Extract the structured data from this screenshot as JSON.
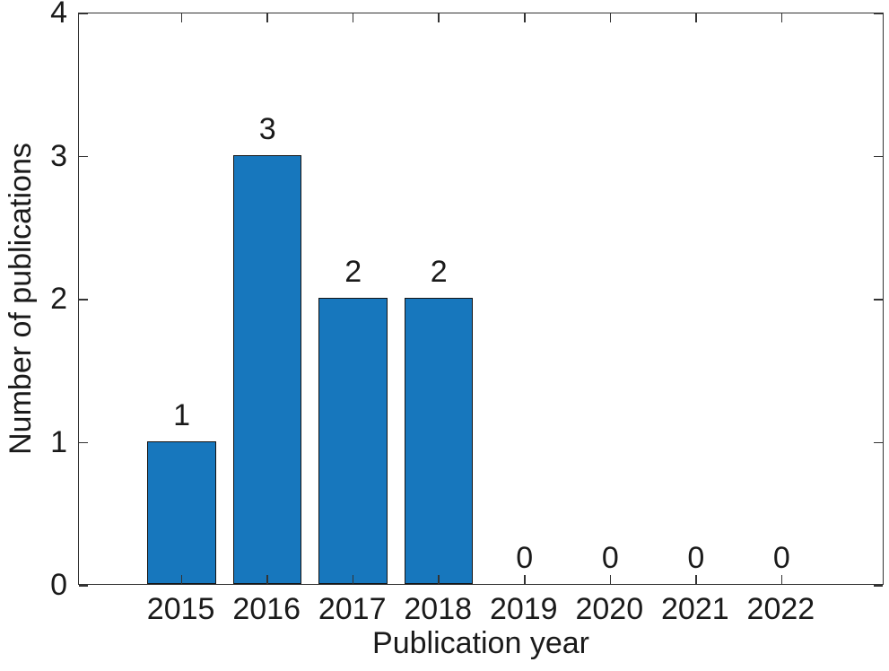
{
  "figure": {
    "background": "#ffffff"
  },
  "chart_data": {
    "type": "bar",
    "title": "",
    "xlabel": "Publication year",
    "ylabel": "Number of publications",
    "categories": [
      "2015",
      "2016",
      "2017",
      "2018",
      "2019",
      "2020",
      "2021",
      "2022"
    ],
    "values": [
      1,
      3,
      2,
      2,
      0,
      0,
      0,
      0
    ],
    "bar_labels": [
      "1",
      "3",
      "2",
      "2",
      "0",
      "0",
      "0",
      "0"
    ],
    "y_tick_labels": [
      "0",
      "1",
      "2",
      "3",
      "4"
    ],
    "y_ticks": [
      0,
      1,
      2,
      3,
      4
    ],
    "ylim": [
      0,
      4
    ],
    "xlim": [
      2013.8,
      2023.2
    ],
    "bar_width": 0.8,
    "grid": false,
    "legend_position": "none",
    "bar_color": "#1777bd",
    "bar_edge_color": "#141414",
    "axis_color": "#333333",
    "text_color": "#1a1a1a"
  }
}
